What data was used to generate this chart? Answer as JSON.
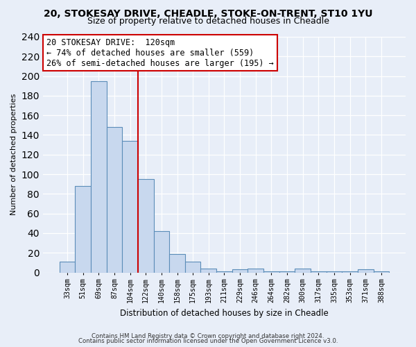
{
  "title": "20, STOKESAY DRIVE, CHEADLE, STOKE-ON-TRENT, ST10 1YU",
  "subtitle": "Size of property relative to detached houses in Cheadle",
  "xlabel": "Distribution of detached houses by size in Cheadle",
  "ylabel": "Number of detached properties",
  "bar_labels": [
    "33sqm",
    "51sqm",
    "69sqm",
    "87sqm",
    "104sqm",
    "122sqm",
    "140sqm",
    "158sqm",
    "175sqm",
    "193sqm",
    "211sqm",
    "229sqm",
    "246sqm",
    "264sqm",
    "282sqm",
    "300sqm",
    "317sqm",
    "335sqm",
    "353sqm",
    "371sqm",
    "388sqm"
  ],
  "bar_values": [
    11,
    88,
    195,
    148,
    134,
    95,
    42,
    19,
    11,
    4,
    1,
    3,
    4,
    1,
    1,
    4,
    1,
    1,
    1,
    3,
    1
  ],
  "bar_color": "#c8d8ee",
  "bar_edge_color": "#5b8db8",
  "vline_color": "#cc0000",
  "annotation_title": "20 STOKESAY DRIVE:  120sqm",
  "annotation_line1": "← 74% of detached houses are smaller (559)",
  "annotation_line2": "26% of semi-detached houses are larger (195) →",
  "annotation_box_color": "white",
  "annotation_box_edge": "#cc0000",
  "footer1": "Contains HM Land Registry data © Crown copyright and database right 2024.",
  "footer2": "Contains public sector information licensed under the Open Government Licence v3.0.",
  "ylim": [
    0,
    240
  ],
  "background_color": "#e8eef8",
  "grid_color": "#ffffff",
  "title_fontsize": 10,
  "subtitle_fontsize": 9
}
